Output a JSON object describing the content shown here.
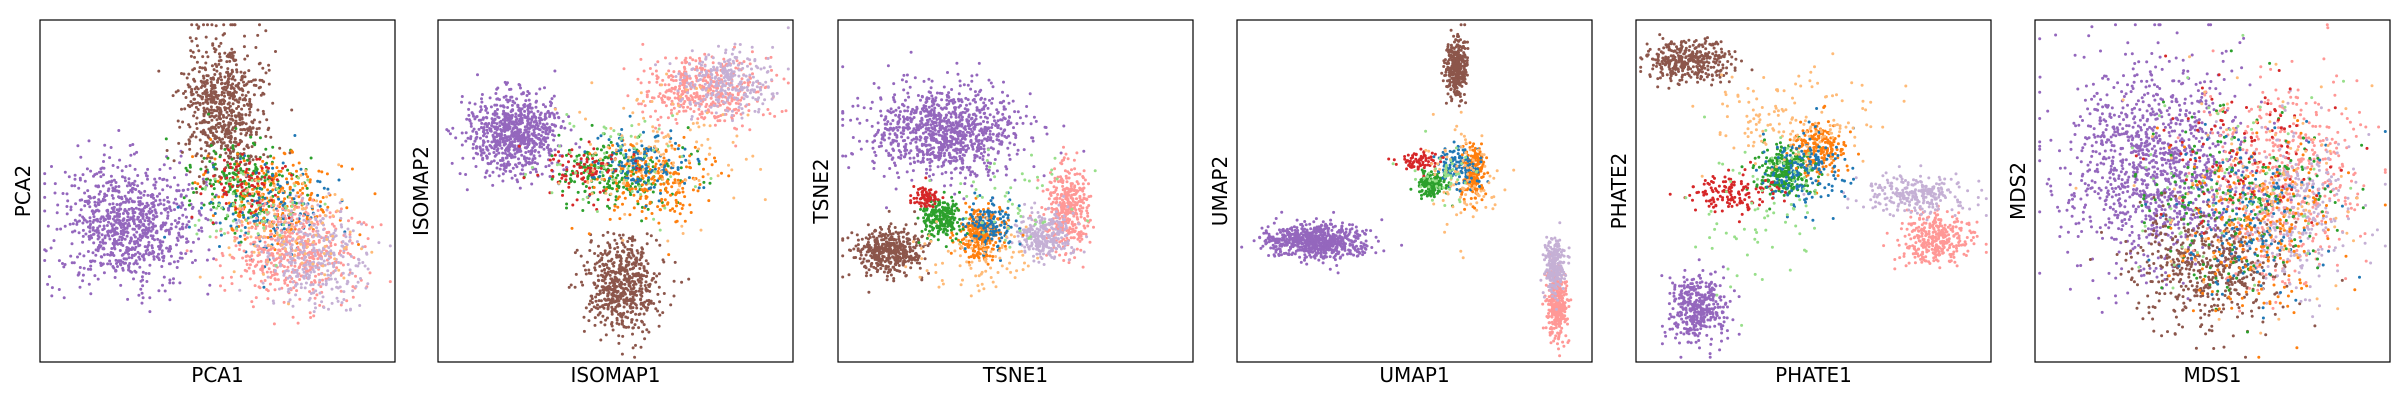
{
  "figure": {
    "panels": [
      {
        "id": "pca",
        "xlabel": "PCA1",
        "ylabel": "PCA2"
      },
      {
        "id": "isomap",
        "xlabel": "ISOMAP1",
        "ylabel": "ISOMAP2"
      },
      {
        "id": "tsne",
        "xlabel": "TSNE1",
        "ylabel": "TSNE2"
      },
      {
        "id": "umap",
        "xlabel": "UMAP1",
        "ylabel": "UMAP2"
      },
      {
        "id": "phate",
        "xlabel": "PHATE1",
        "ylabel": "PHATE2"
      },
      {
        "id": "mds",
        "xlabel": "MDS1",
        "ylabel": "MDS2"
      }
    ]
  },
  "chart_data": [
    {
      "type": "scatter",
      "xlabel": "PCA1",
      "ylabel": "PCA2",
      "xlim": [
        0,
        100
      ],
      "ylim": [
        0,
        100
      ],
      "xticks": [],
      "yticks": [],
      "grid": false,
      "legend": "none",
      "series": [
        {
          "color": "#9467bd",
          "center": [
            24,
            40
          ],
          "spread": [
            10,
            9
          ],
          "n": 900
        },
        {
          "color": "#8c564b",
          "center": [
            52,
            75
          ],
          "spread": [
            6,
            10
          ],
          "n": 700
        },
        {
          "color": "#2ca02c",
          "center": [
            57,
            52
          ],
          "spread": [
            8,
            6
          ],
          "n": 220
        },
        {
          "color": "#ff7f0e",
          "center": [
            67,
            48
          ],
          "spread": [
            9,
            7
          ],
          "n": 220
        },
        {
          "color": "#1f77b4",
          "center": [
            66,
            43
          ],
          "spread": [
            9,
            7
          ],
          "n": 140
        },
        {
          "color": "#d62728",
          "center": [
            59,
            52
          ],
          "spread": [
            6,
            5
          ],
          "n": 90
        },
        {
          "color": "#ff9896",
          "center": [
            72,
            32
          ],
          "spread": [
            9,
            7
          ],
          "n": 500
        },
        {
          "color": "#c5b0d5",
          "center": [
            78,
            30
          ],
          "spread": [
            8,
            7
          ],
          "n": 320
        },
        {
          "color": "#ffbb78",
          "center": [
            72,
            38
          ],
          "spread": [
            9,
            8
          ],
          "n": 100
        },
        {
          "color": "#98df8a",
          "center": [
            60,
            45
          ],
          "spread": [
            9,
            8
          ],
          "n": 60
        }
      ]
    },
    {
      "type": "scatter",
      "xlabel": "ISOMAP1",
      "ylabel": "ISOMAP2",
      "xlim": [
        0,
        100
      ],
      "ylim": [
        0,
        100
      ],
      "xticks": [],
      "yticks": [],
      "grid": false,
      "legend": "none",
      "series": [
        {
          "color": "#9467bd",
          "center": [
            21,
            67
          ],
          "spread": [
            7,
            6
          ],
          "n": 800
        },
        {
          "color": "#8c564b",
          "center": [
            52,
            22
          ],
          "spread": [
            5,
            7
          ],
          "n": 600
        },
        {
          "color": "#ff9896",
          "center": [
            76,
            80
          ],
          "spread": [
            8,
            5
          ],
          "n": 450
        },
        {
          "color": "#c5b0d5",
          "center": [
            82,
            82
          ],
          "spread": [
            7,
            5
          ],
          "n": 280
        },
        {
          "color": "#2ca02c",
          "center": [
            50,
            55
          ],
          "spread": [
            9,
            5
          ],
          "n": 230
        },
        {
          "color": "#ff7f0e",
          "center": [
            61,
            53
          ],
          "spread": [
            8,
            6
          ],
          "n": 230
        },
        {
          "color": "#1f77b4",
          "center": [
            57,
            58
          ],
          "spread": [
            7,
            5
          ],
          "n": 140
        },
        {
          "color": "#d62728",
          "center": [
            41,
            56
          ],
          "spread": [
            6,
            4
          ],
          "n": 90
        },
        {
          "color": "#ffbb78",
          "center": [
            62,
            64
          ],
          "spread": [
            12,
            10
          ],
          "n": 120
        },
        {
          "color": "#98df8a",
          "center": [
            50,
            60
          ],
          "spread": [
            12,
            10
          ],
          "n": 60
        }
      ]
    },
    {
      "type": "scatter",
      "xlabel": "TSNE1",
      "ylabel": "TSNE2",
      "xlim": [
        0,
        100
      ],
      "ylim": [
        0,
        100
      ],
      "xticks": [],
      "yticks": [],
      "grid": false,
      "legend": "none",
      "series": [
        {
          "color": "#9467bd",
          "center": [
            30,
            68
          ],
          "spread": [
            11,
            7
          ],
          "n": 1000
        },
        {
          "color": "#8c564b",
          "center": [
            14,
            32
          ],
          "spread": [
            5,
            3.5
          ],
          "n": 450
        },
        {
          "color": "#ff9896",
          "center": [
            65,
            45
          ],
          "spread": [
            3,
            6
          ],
          "n": 380
        },
        {
          "color": "#c5b0d5",
          "center": [
            58,
            37
          ],
          "spread": [
            4,
            3.5
          ],
          "n": 280
        },
        {
          "color": "#ff7f0e",
          "center": [
            40,
            37
          ],
          "spread": [
            3,
            4
          ],
          "n": 280
        },
        {
          "color": "#2ca02c",
          "center": [
            29,
            42
          ],
          "spread": [
            3,
            3
          ],
          "n": 220
        },
        {
          "color": "#1f77b4",
          "center": [
            43,
            40
          ],
          "spread": [
            4,
            4
          ],
          "n": 130
        },
        {
          "color": "#d62728",
          "center": [
            24,
            48
          ],
          "spread": [
            2,
            1.5
          ],
          "n": 80
        },
        {
          "color": "#ffbb78",
          "center": [
            40,
            30
          ],
          "spread": [
            10,
            5
          ],
          "n": 90
        },
        {
          "color": "#98df8a",
          "center": [
            48,
            48
          ],
          "spread": [
            9,
            8
          ],
          "n": 50
        }
      ]
    },
    {
      "type": "scatter",
      "xlabel": "UMAP1",
      "ylabel": "UMAP2",
      "xlim": [
        0,
        100
      ],
      "ylim": [
        0,
        100
      ],
      "xticks": [],
      "yticks": [],
      "grid": false,
      "legend": "none",
      "series": [
        {
          "color": "#9467bd",
          "center": [
            22,
            35
          ],
          "spread": [
            7,
            2.5
          ],
          "n": 700
        },
        {
          "color": "#8c564b",
          "center": [
            62,
            87
          ],
          "spread": [
            1.5,
            4.5
          ],
          "n": 350
        },
        {
          "color": "#ff9896",
          "center": [
            91,
            16
          ],
          "spread": [
            1.4,
            5
          ],
          "n": 320
        },
        {
          "color": "#c5b0d5",
          "center": [
            90,
            28
          ],
          "spread": [
            1.5,
            4
          ],
          "n": 220
        },
        {
          "color": "#ff7f0e",
          "center": [
            67,
            55
          ],
          "spread": [
            1.6,
            4
          ],
          "n": 200
        },
        {
          "color": "#2ca02c",
          "center": [
            55,
            52
          ],
          "spread": [
            2,
            1.8
          ],
          "n": 160
        },
        {
          "color": "#1f77b4",
          "center": [
            63,
            57
          ],
          "spread": [
            3,
            3
          ],
          "n": 120
        },
        {
          "color": "#d62728",
          "center": [
            51,
            59
          ],
          "spread": [
            3,
            1.5
          ],
          "n": 70
        },
        {
          "color": "#ffbb78",
          "center": [
            64,
            55
          ],
          "spread": [
            5,
            8
          ],
          "n": 90
        },
        {
          "color": "#98df8a",
          "center": [
            58,
            54
          ],
          "spread": [
            5,
            4
          ],
          "n": 50
        }
      ]
    },
    {
      "type": "scatter",
      "xlabel": "PHATE1",
      "ylabel": "PHATE2",
      "xlim": [
        0,
        100
      ],
      "ylim": [
        0,
        100
      ],
      "xticks": [],
      "yticks": [],
      "grid": false,
      "legend": "none",
      "series": [
        {
          "color": "#8c564b",
          "center": [
            14,
            89
          ],
          "spread": [
            6,
            3
          ],
          "n": 380
        },
        {
          "color": "#9467bd",
          "center": [
            17,
            15
          ],
          "spread": [
            4,
            5
          ],
          "n": 400
        },
        {
          "color": "#ff9896",
          "center": [
            85,
            36
          ],
          "spread": [
            5,
            4
          ],
          "n": 330
        },
        {
          "color": "#c5b0d5",
          "center": [
            80,
            49
          ],
          "spread": [
            8,
            3
          ],
          "n": 260
        },
        {
          "color": "#2ca02c",
          "center": [
            42,
            56
          ],
          "spread": [
            4,
            4
          ],
          "n": 260
        },
        {
          "color": "#ff7f0e",
          "center": [
            52,
            63
          ],
          "spread": [
            4,
            4
          ],
          "n": 200
        },
        {
          "color": "#1f77b4",
          "center": [
            47,
            56
          ],
          "spread": [
            6,
            6
          ],
          "n": 160
        },
        {
          "color": "#d62728",
          "center": [
            27,
            49
          ],
          "spread": [
            6,
            3
          ],
          "n": 140
        },
        {
          "color": "#ffbb78",
          "center": [
            45,
            72
          ],
          "spread": [
            12,
            7
          ],
          "n": 150
        },
        {
          "color": "#98df8a",
          "center": [
            35,
            45
          ],
          "spread": [
            12,
            10
          ],
          "n": 80
        }
      ]
    },
    {
      "type": "scatter",
      "xlabel": "MDS1",
      "ylabel": "MDS2",
      "xlim": [
        0,
        100
      ],
      "ylim": [
        0,
        100
      ],
      "xticks": [],
      "yticks": [],
      "grid": false,
      "legend": "none",
      "series": [
        {
          "color": "#9467bd",
          "center": [
            34,
            58
          ],
          "spread": [
            13,
            15
          ],
          "n": 1200
        },
        {
          "color": "#8c564b",
          "center": [
            48,
            28
          ],
          "spread": [
            11,
            9
          ],
          "n": 500
        },
        {
          "color": "#ff9896",
          "center": [
            72,
            53
          ],
          "spread": [
            11,
            15
          ],
          "n": 500
        },
        {
          "color": "#c5b0d5",
          "center": [
            74,
            45
          ],
          "spread": [
            9,
            12
          ],
          "n": 300
        },
        {
          "color": "#2ca02c",
          "center": [
            58,
            48
          ],
          "spread": [
            13,
            14
          ],
          "n": 220
        },
        {
          "color": "#ff7f0e",
          "center": [
            63,
            40
          ],
          "spread": [
            12,
            13
          ],
          "n": 220
        },
        {
          "color": "#1f77b4",
          "center": [
            62,
            44
          ],
          "spread": [
            12,
            13
          ],
          "n": 150
        },
        {
          "color": "#d62728",
          "center": [
            60,
            62
          ],
          "spread": [
            12,
            12
          ],
          "n": 110
        },
        {
          "color": "#ffbb78",
          "center": [
            62,
            50
          ],
          "spread": [
            15,
            16
          ],
          "n": 120
        },
        {
          "color": "#98df8a",
          "center": [
            55,
            50
          ],
          "spread": [
            15,
            16
          ],
          "n": 60
        }
      ]
    }
  ]
}
